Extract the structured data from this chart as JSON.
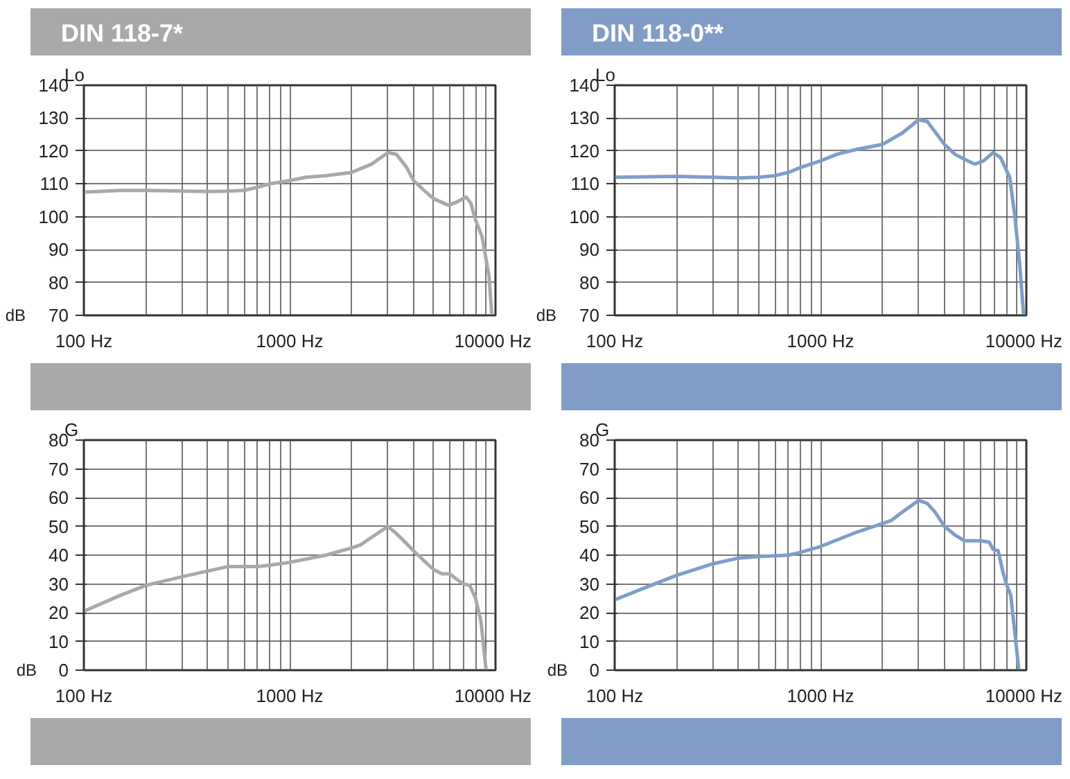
{
  "chart_data": [
    {
      "type": "line",
      "title": "DIN 118-7*",
      "ylabel": "Lo",
      "annotations": [
        "dB"
      ],
      "log": "x",
      "grid": true,
      "xlim": [
        100,
        10000
      ],
      "ylim": [
        70,
        140
      ],
      "yticks": [
        70,
        80,
        90,
        100,
        110,
        120,
        130,
        140
      ],
      "xticks": [
        {
          "value": 100,
          "label": "100 Hz"
        },
        {
          "value": 200,
          "label": null
        },
        {
          "value": 300,
          "label": null
        },
        {
          "value": 400,
          "label": null
        },
        {
          "value": 500,
          "label": null
        },
        {
          "value": 600,
          "label": null
        },
        {
          "value": 700,
          "label": null
        },
        {
          "value": 800,
          "label": null
        },
        {
          "value": 900,
          "label": null
        },
        {
          "value": 1000,
          "label": "1000 Hz"
        },
        {
          "value": 2000,
          "label": null
        },
        {
          "value": 3000,
          "label": null
        },
        {
          "value": 4000,
          "label": null
        },
        {
          "value": 5000,
          "label": null
        },
        {
          "value": 6000,
          "label": null
        },
        {
          "value": 7000,
          "label": null
        },
        {
          "value": 8000,
          "label": null
        },
        {
          "value": 9000,
          "label": null
        },
        {
          "value": 10000,
          "label": "10000 Hz"
        }
      ],
      "series": [
        {
          "color": "#a9a9ab",
          "x": [
            100,
            150,
            200,
            300,
            400,
            500,
            600,
            700,
            800,
            1000,
            1200,
            1500,
            2000,
            2500,
            3000,
            3300,
            3700,
            4000,
            4500,
            5000,
            5900,
            6500,
            7200,
            7600,
            8000,
            8600,
            9300,
            9600
          ],
          "values": [
            107.5,
            108,
            108,
            107.8,
            107.7,
            107.8,
            108,
            109,
            110,
            111,
            112,
            112.5,
            113.5,
            116,
            119.5,
            119,
            115,
            111,
            108,
            105.5,
            103.5,
            104.5,
            106,
            104,
            99,
            94,
            82,
            70
          ]
        }
      ]
    },
    {
      "type": "line",
      "title": "DIN 118-0**",
      "ylabel": "Lo",
      "annotations": [
        "dB"
      ],
      "log": "x",
      "grid": true,
      "xlim": [
        100,
        10000
      ],
      "ylim": [
        70,
        140
      ],
      "yticks": [
        70,
        80,
        90,
        100,
        110,
        120,
        130,
        140
      ],
      "xticks": [
        {
          "value": 100,
          "label": "100 Hz"
        },
        {
          "value": 200,
          "label": null
        },
        {
          "value": 300,
          "label": null
        },
        {
          "value": 400,
          "label": null
        },
        {
          "value": 500,
          "label": null
        },
        {
          "value": 600,
          "label": null
        },
        {
          "value": 700,
          "label": null
        },
        {
          "value": 800,
          "label": null
        },
        {
          "value": 900,
          "label": null
        },
        {
          "value": 1000,
          "label": "1000 Hz"
        },
        {
          "value": 2000,
          "label": null
        },
        {
          "value": 3000,
          "label": null
        },
        {
          "value": 4000,
          "label": null
        },
        {
          "value": 5000,
          "label": null
        },
        {
          "value": 6000,
          "label": null
        },
        {
          "value": 7000,
          "label": null
        },
        {
          "value": 8000,
          "label": null
        },
        {
          "value": 9000,
          "label": null
        },
        {
          "value": 10000,
          "label": "10000 Hz"
        }
      ],
      "series": [
        {
          "color": "#7f9dc6",
          "x": [
            100,
            200,
            300,
            400,
            500,
            600,
            700,
            800,
            1000,
            1200,
            1500,
            2000,
            2500,
            3000,
            3300,
            4000,
            4500,
            5000,
            5600,
            6200,
            6900,
            7500,
            8300,
            8800,
            9300,
            9700
          ],
          "values": [
            112,
            112.3,
            112,
            111.8,
            112,
            112.5,
            113.5,
            115,
            117,
            119,
            120.5,
            122,
            125.5,
            129.5,
            129,
            122,
            119,
            117.5,
            116,
            117,
            119.5,
            118,
            112,
            100,
            85,
            70
          ]
        }
      ]
    },
    {
      "type": "line",
      "ylabel": "G",
      "annotations": [
        "dB"
      ],
      "log": "x",
      "grid": true,
      "xlim": [
        100,
        10000
      ],
      "ylim": [
        0,
        80
      ],
      "yticks": [
        0,
        10,
        20,
        30,
        40,
        50,
        60,
        70,
        80
      ],
      "xticks": [
        {
          "value": 100,
          "label": "100 Hz"
        },
        {
          "value": 200,
          "label": null
        },
        {
          "value": 300,
          "label": null
        },
        {
          "value": 400,
          "label": null
        },
        {
          "value": 500,
          "label": null
        },
        {
          "value": 600,
          "label": null
        },
        {
          "value": 700,
          "label": null
        },
        {
          "value": 800,
          "label": null
        },
        {
          "value": 900,
          "label": null
        },
        {
          "value": 1000,
          "label": "1000 Hz"
        },
        {
          "value": 2000,
          "label": null
        },
        {
          "value": 3000,
          "label": null
        },
        {
          "value": 4000,
          "label": null
        },
        {
          "value": 5000,
          "label": null
        },
        {
          "value": 6000,
          "label": null
        },
        {
          "value": 7000,
          "label": null
        },
        {
          "value": 8000,
          "label": null
        },
        {
          "value": 9000,
          "label": null
        },
        {
          "value": 10000,
          "label": "10000 Hz"
        }
      ],
      "series": [
        {
          "color": "#a9a9ab",
          "x": [
            100,
            150,
            200,
            300,
            400,
            500,
            700,
            800,
            1000,
            1500,
            2000,
            2200,
            3000,
            3300,
            3700,
            4000,
            4500,
            5000,
            5500,
            6000,
            6500,
            7000,
            7500,
            8000,
            8500,
            9000
          ],
          "values": [
            20.5,
            26,
            29.5,
            32.5,
            34.5,
            36,
            36,
            36.5,
            37.5,
            40,
            42.5,
            43.5,
            50,
            47.5,
            44,
            41.5,
            38,
            35,
            33.5,
            33.5,
            31.5,
            30,
            29.5,
            25,
            17,
            0
          ]
        }
      ]
    },
    {
      "type": "line",
      "ylabel": "G",
      "annotations": [
        "dB"
      ],
      "log": "x",
      "grid": true,
      "xlim": [
        100,
        10000
      ],
      "ylim": [
        0,
        80
      ],
      "yticks": [
        0,
        10,
        20,
        30,
        40,
        50,
        60,
        70,
        80
      ],
      "xticks": [
        {
          "value": 100,
          "label": "100 Hz"
        },
        {
          "value": 200,
          "label": null
        },
        {
          "value": 300,
          "label": null
        },
        {
          "value": 400,
          "label": null
        },
        {
          "value": 500,
          "label": null
        },
        {
          "value": 600,
          "label": null
        },
        {
          "value": 700,
          "label": null
        },
        {
          "value": 800,
          "label": null
        },
        {
          "value": 900,
          "label": null
        },
        {
          "value": 1000,
          "label": "1000 Hz"
        },
        {
          "value": 2000,
          "label": null
        },
        {
          "value": 3000,
          "label": null
        },
        {
          "value": 4000,
          "label": null
        },
        {
          "value": 5000,
          "label": null
        },
        {
          "value": 6000,
          "label": null
        },
        {
          "value": 7000,
          "label": null
        },
        {
          "value": 8000,
          "label": null
        },
        {
          "value": 9000,
          "label": null
        },
        {
          "value": 10000,
          "label": "10000 Hz"
        }
      ],
      "series": [
        {
          "color": "#7f9dc6",
          "x": [
            100,
            150,
            200,
            300,
            400,
            500,
            700,
            800,
            1000,
            1500,
            2000,
            2200,
            2500,
            3000,
            3300,
            3600,
            4000,
            4500,
            5000,
            6000,
            6600,
            6900,
            7300,
            7700,
            8000,
            8400,
            9200
          ],
          "values": [
            24.5,
            29.5,
            33,
            37,
            39,
            39.5,
            40,
            41,
            43,
            48,
            51,
            52,
            55,
            59,
            58,
            55,
            50,
            47,
            45,
            45,
            44.5,
            42,
            41.5,
            34,
            30,
            26,
            0
          ]
        }
      ]
    }
  ]
}
